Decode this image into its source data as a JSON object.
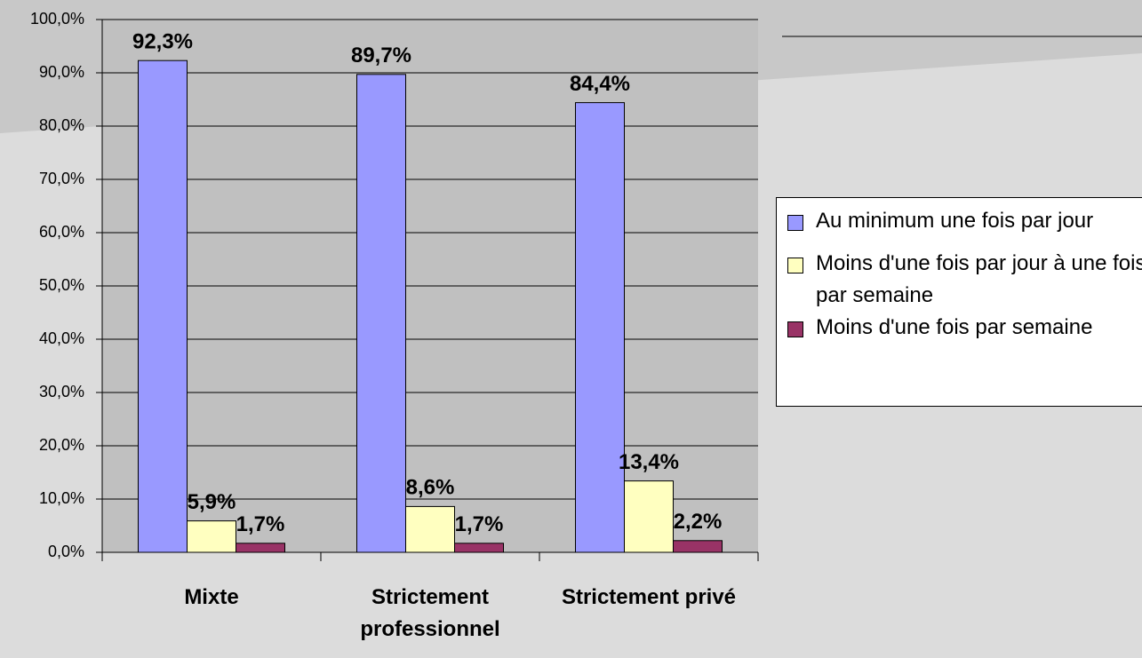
{
  "chart_data": {
    "type": "bar",
    "categories": [
      "Mixte",
      "Strictement professionnel",
      "Strictement privé"
    ],
    "series": [
      {
        "name": "Au minimum une fois par jour",
        "color": "#9999ff",
        "values": [
          92.3,
          89.7,
          84.4
        ],
        "value_labels": [
          "92,3%",
          "89,7%",
          "84,4%"
        ]
      },
      {
        "name": "Moins d'une fois par jour à une fois par semaine",
        "color": "#ffffc0",
        "values": [
          5.9,
          8.6,
          13.4
        ],
        "value_labels": [
          "5,9%",
          "8,6%",
          "13,4%"
        ]
      },
      {
        "name": "Moins d'une fois par semaine",
        "color": "#993366",
        "values": [
          1.7,
          1.7,
          2.2
        ],
        "value_labels": [
          "1,7%",
          "1,7%",
          "2,2%"
        ]
      }
    ],
    "ylim": [
      0,
      100
    ],
    "yticks": [
      {
        "value": 0,
        "label": "0,0%"
      },
      {
        "value": 10,
        "label": "10,0%"
      },
      {
        "value": 20,
        "label": "20,0%"
      },
      {
        "value": 30,
        "label": "30,0%"
      },
      {
        "value": 40,
        "label": "40,0%"
      },
      {
        "value": 50,
        "label": "50,0%"
      },
      {
        "value": 60,
        "label": "60,0%"
      },
      {
        "value": 70,
        "label": "70,0%"
      },
      {
        "value": 80,
        "label": "80,0%"
      },
      {
        "value": 90,
        "label": "90,0%"
      },
      {
        "value": 100,
        "label": "100,0%"
      }
    ],
    "grid": true,
    "legend": "right"
  }
}
